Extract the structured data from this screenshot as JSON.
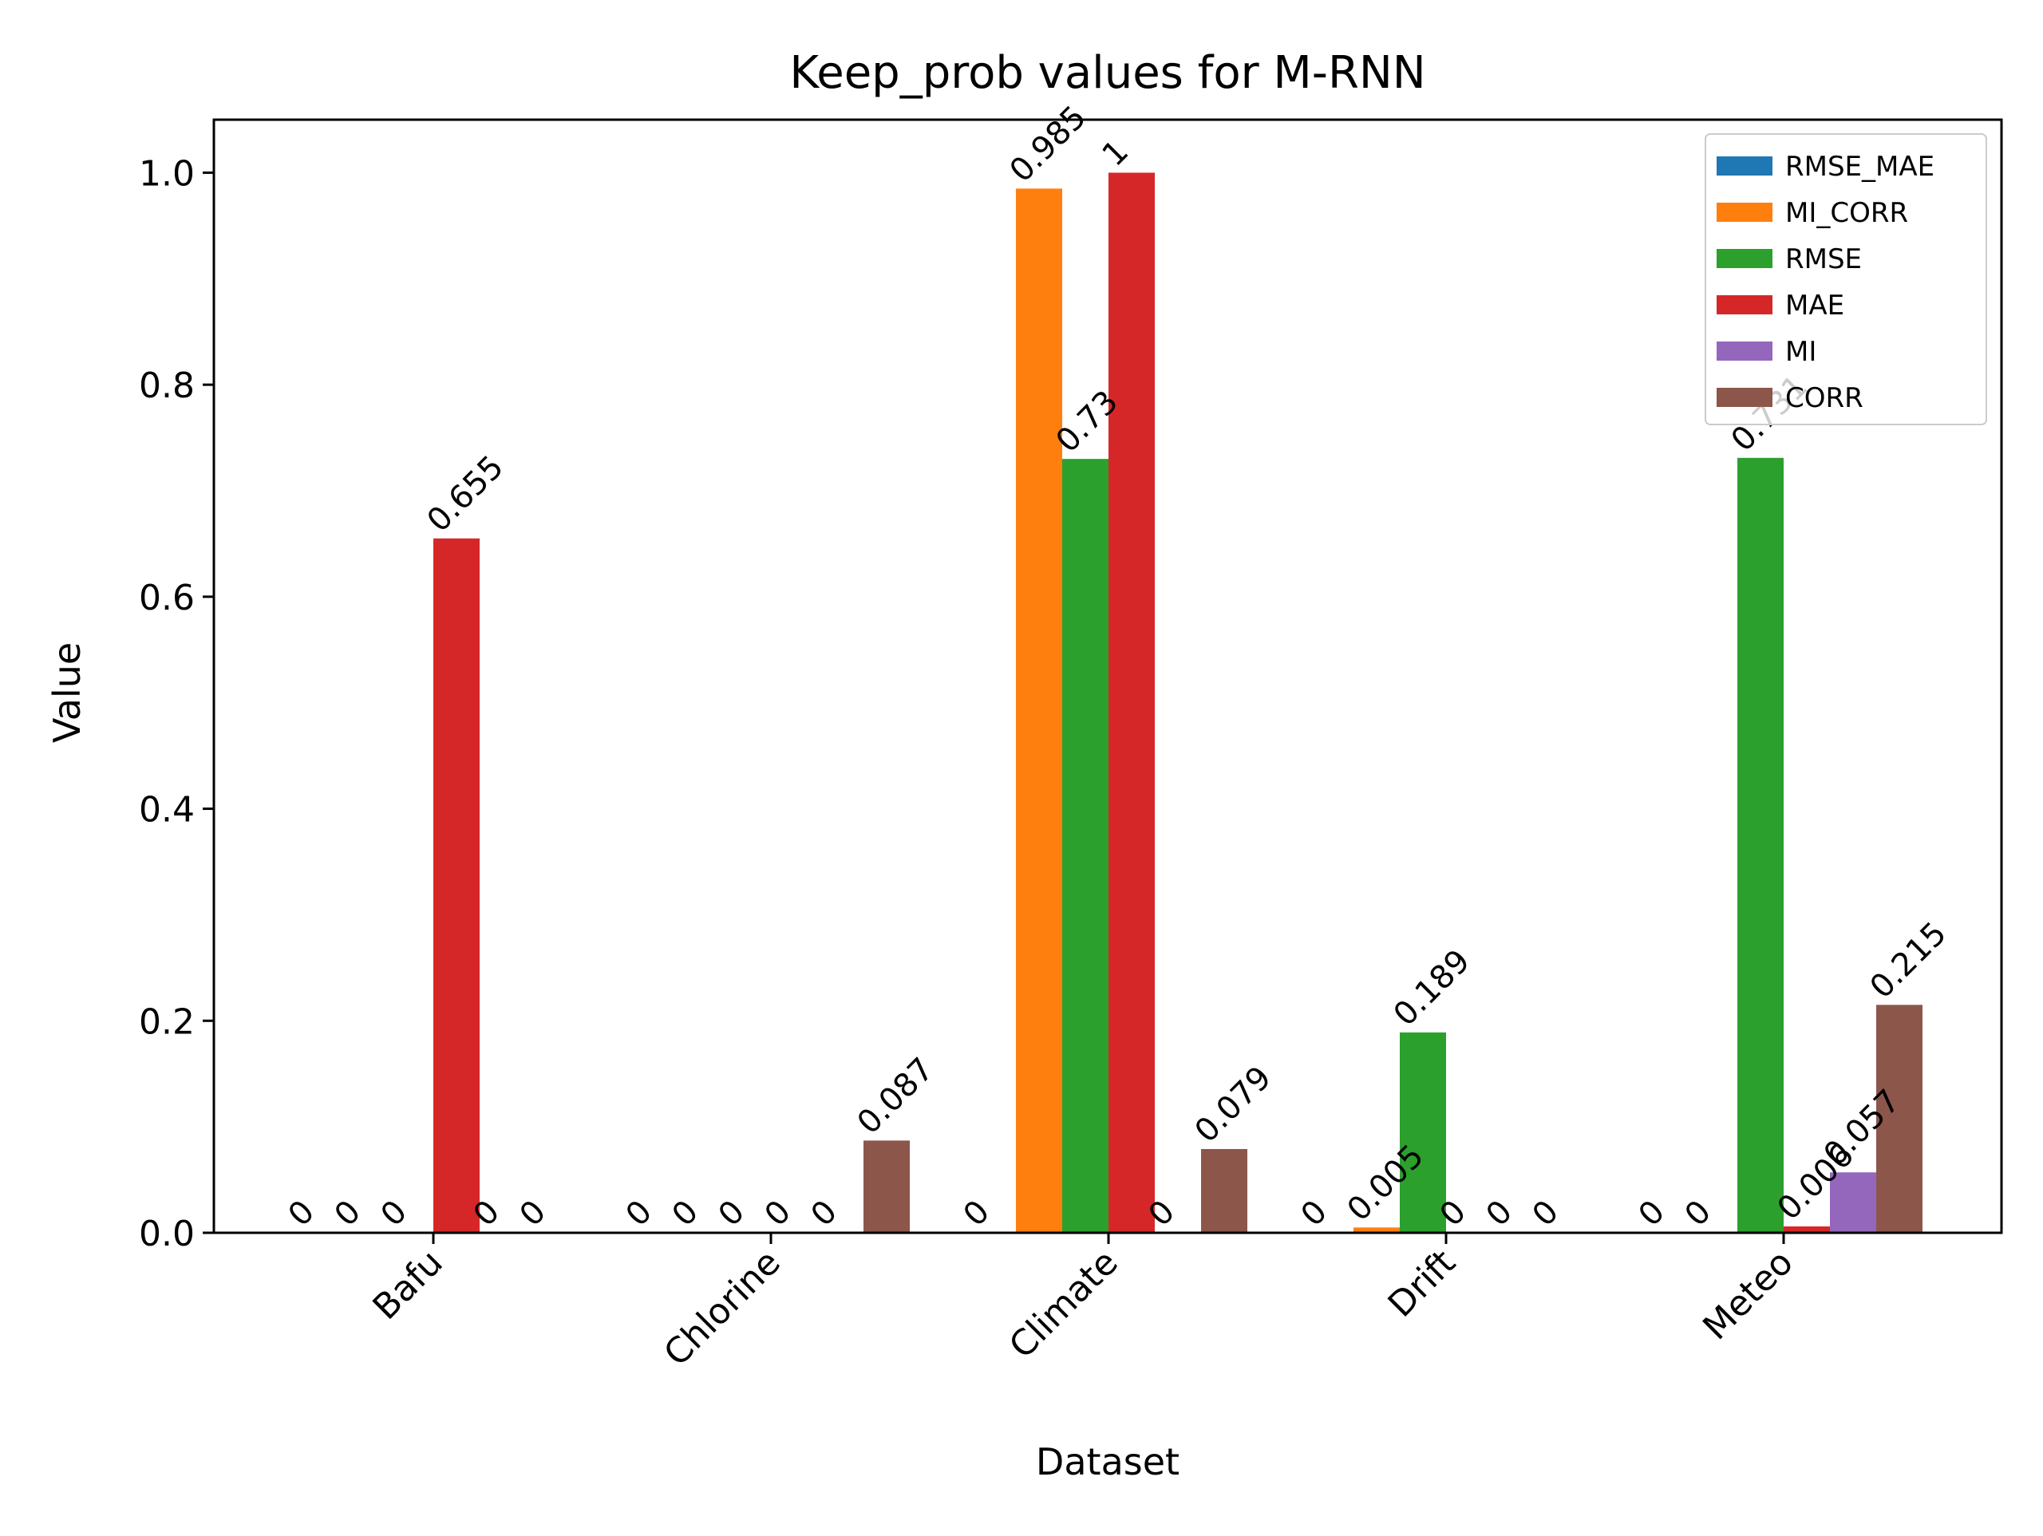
{
  "chart_data": {
    "type": "bar",
    "title": "Keep_prob values for M-RNN",
    "xlabel": "Dataset",
    "ylabel": "Value",
    "ylim": [
      0,
      1.05
    ],
    "yticks": [
      "0.0",
      "0.2",
      "0.4",
      "0.6",
      "0.8",
      "1.0"
    ],
    "categories": [
      "Bafu",
      "Chlorine",
      "Climate",
      "Drift",
      "Meteo"
    ],
    "legend_position": "top-right",
    "grid": false,
    "series": [
      {
        "name": "RMSE_MAE",
        "color": "#1f77b4",
        "values": [
          0,
          0,
          0,
          0,
          0
        ],
        "labels": [
          "0",
          "0",
          "0",
          "0",
          "0"
        ]
      },
      {
        "name": "MI_CORR",
        "color": "#ff7f0e",
        "values": [
          0,
          0,
          0.985,
          0.005,
          0
        ],
        "labels": [
          "0",
          "0",
          "0.985",
          "0.005",
          "0"
        ]
      },
      {
        "name": "RMSE",
        "color": "#2ca02c",
        "values": [
          0,
          0,
          0.73,
          0.189,
          0.731
        ],
        "labels": [
          "0",
          "0",
          "0.73",
          "0.189",
          "0.731"
        ]
      },
      {
        "name": "MAE",
        "color": "#d62728",
        "values": [
          0.655,
          0,
          1,
          0,
          0.006
        ],
        "labels": [
          "0.655",
          "0",
          "1",
          "0",
          "0.006"
        ]
      },
      {
        "name": "MI",
        "color": "#9467bd",
        "values": [
          0,
          0,
          0,
          0,
          0.057
        ],
        "labels": [
          "0",
          "0",
          "0",
          "0",
          "0.057"
        ]
      },
      {
        "name": "CORR",
        "color": "#8c564b",
        "values": [
          0,
          0.087,
          0.079,
          0,
          0.215
        ],
        "labels": [
          "0",
          "0.087",
          "0.079",
          "0",
          "0.215"
        ]
      }
    ]
  }
}
